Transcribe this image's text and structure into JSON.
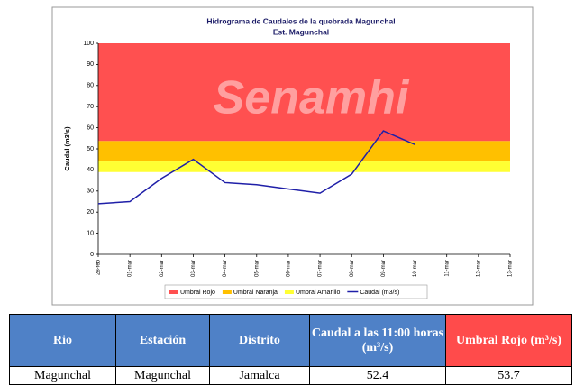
{
  "chart_data": {
    "type": "line",
    "title": "Hidrograma de Caudales de la quebrada Magunchal",
    "subtitle": "Est. Magunchal",
    "watermark": "Senamhi",
    "y_label": "Caudal (m3/s)",
    "categories": [
      "28-feb",
      "01-mar",
      "02-mar",
      "03-mar",
      "04-mar",
      "05-mar",
      "06-mar",
      "07-mar",
      "08-mar",
      "09-mar",
      "10-mar",
      "11-mar",
      "12-mar",
      "13-mar"
    ],
    "series": [
      {
        "name": "Caudal (m3/s)",
        "color": "#1f1fa8",
        "values": [
          24,
          25,
          36,
          45,
          34,
          33,
          31,
          29,
          38,
          58.5,
          52,
          null,
          null,
          null
        ]
      }
    ],
    "thresholds": [
      {
        "name": "Umbral Rojo",
        "color": "#ff5050",
        "from": 53.7,
        "to": 100
      },
      {
        "name": "Umbral Naranja",
        "color": "#ffc000",
        "from": 44,
        "to": 53.7
      },
      {
        "name": "Umbral Amarillo",
        "color": "#ffff33",
        "from": 39,
        "to": 44
      }
    ],
    "ylim": [
      0,
      100
    ],
    "yticks": [
      0,
      10,
      20,
      30,
      40,
      50,
      60,
      70,
      80,
      90,
      100
    ]
  },
  "table": {
    "header": [
      "Rio",
      "Estación",
      "Distrito",
      "Caudal a las 11:00 horas (m³/s)",
      "Umbral Rojo (m³/s)"
    ],
    "rows": [
      [
        "Magunchal",
        "Magunchal",
        "Jamalca",
        52.4,
        53.7
      ]
    ]
  }
}
